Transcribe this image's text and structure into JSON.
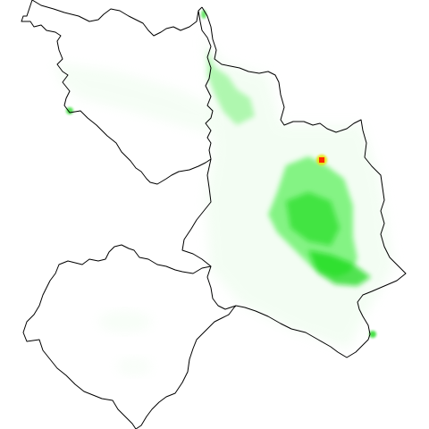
{
  "map": {
    "style": {
      "background": "#ffffff",
      "outline_color": "#000000",
      "heat_low_color": "#eafcea",
      "heat_mid_color": "#5ef05e",
      "heat_high_color": "#10d810",
      "hotspot_outer_color": "#e8e000",
      "hotspot_core_color": "#ff2a00"
    },
    "legend_shown": false,
    "labels_shown": false
  }
}
